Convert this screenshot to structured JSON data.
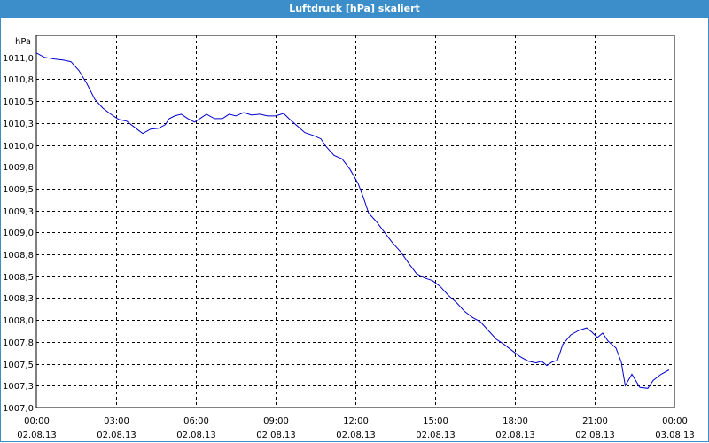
{
  "window": {
    "title": "Luftdruck [hPa] skaliert"
  },
  "colors": {
    "titlebar": "#3b8ec9",
    "series": "#0000cc",
    "grid": "#000000"
  },
  "chart_data": {
    "type": "line",
    "title": "Luftdruck [hPa] skaliert",
    "ylabel": "hPa",
    "xlabel": "",
    "grid": true,
    "grid_style": "dashed",
    "x_unit": "hours since 02.08.13 00:00",
    "xlim": [
      0,
      24
    ],
    "ylim": [
      1007.0,
      1011.25
    ],
    "x_ticks": [
      {
        "x": 0,
        "time": "00:00",
        "date": "02.08.13"
      },
      {
        "x": 3,
        "time": "03:00",
        "date": "02.08.13"
      },
      {
        "x": 6,
        "time": "06:00",
        "date": "02.08.13"
      },
      {
        "x": 9,
        "time": "09:00",
        "date": "02.08.13"
      },
      {
        "x": 12,
        "time": "12:00",
        "date": "02.08.13"
      },
      {
        "x": 15,
        "time": "15:00",
        "date": "02.08.13"
      },
      {
        "x": 18,
        "time": "18:00",
        "date": "02.08.13"
      },
      {
        "x": 21,
        "time": "21:00",
        "date": "02.08.13"
      },
      {
        "x": 24,
        "time": "00:00",
        "date": "03.08.13"
      }
    ],
    "y_ticks": [
      {
        "v": 1007.0,
        "label": "1007,0"
      },
      {
        "v": 1007.25,
        "label": "1007,3"
      },
      {
        "v": 1007.5,
        "label": "1007,5"
      },
      {
        "v": 1007.75,
        "label": "1007,8"
      },
      {
        "v": 1008.0,
        "label": "1008,0"
      },
      {
        "v": 1008.25,
        "label": "1008,3"
      },
      {
        "v": 1008.5,
        "label": "1008,5"
      },
      {
        "v": 1008.75,
        "label": "1008,8"
      },
      {
        "v": 1009.0,
        "label": "1009,0"
      },
      {
        "v": 1009.25,
        "label": "1009,3"
      },
      {
        "v": 1009.5,
        "label": "1009,5"
      },
      {
        "v": 1009.75,
        "label": "1009,8"
      },
      {
        "v": 1010.0,
        "label": "1010,0"
      },
      {
        "v": 1010.25,
        "label": "1010,3"
      },
      {
        "v": 1010.5,
        "label": "1010,5"
      },
      {
        "v": 1010.75,
        "label": "1010,8"
      },
      {
        "v": 1011.0,
        "label": "1011,0"
      }
    ],
    "series": [
      {
        "color": "#0000cc",
        "points": [
          [
            0.0,
            1011.05
          ],
          [
            0.3,
            1011.0
          ],
          [
            0.7,
            1010.98
          ],
          [
            1.0,
            1010.97
          ],
          [
            1.3,
            1010.95
          ],
          [
            1.6,
            1010.85
          ],
          [
            1.9,
            1010.7
          ],
          [
            2.2,
            1010.52
          ],
          [
            2.5,
            1010.42
          ],
          [
            2.8,
            1010.35
          ],
          [
            3.1,
            1010.29
          ],
          [
            3.4,
            1010.27
          ],
          [
            3.7,
            1010.2
          ],
          [
            4.0,
            1010.13
          ],
          [
            4.3,
            1010.18
          ],
          [
            4.6,
            1010.19
          ],
          [
            4.85,
            1010.23
          ],
          [
            5.0,
            1010.3
          ],
          [
            5.2,
            1010.33
          ],
          [
            5.45,
            1010.35
          ],
          [
            5.7,
            1010.3
          ],
          [
            5.95,
            1010.26
          ],
          [
            6.15,
            1010.3
          ],
          [
            6.4,
            1010.35
          ],
          [
            6.7,
            1010.3
          ],
          [
            7.0,
            1010.3
          ],
          [
            7.25,
            1010.35
          ],
          [
            7.5,
            1010.33
          ],
          [
            7.8,
            1010.37
          ],
          [
            8.1,
            1010.34
          ],
          [
            8.4,
            1010.35
          ],
          [
            8.7,
            1010.33
          ],
          [
            9.0,
            1010.33
          ],
          [
            9.3,
            1010.36
          ],
          [
            9.5,
            1010.3
          ],
          [
            9.8,
            1010.22
          ],
          [
            10.1,
            1010.14
          ],
          [
            10.4,
            1010.11
          ],
          [
            10.7,
            1010.07
          ],
          [
            10.9,
            1009.98
          ],
          [
            11.2,
            1009.88
          ],
          [
            11.5,
            1009.84
          ],
          [
            11.8,
            1009.72
          ],
          [
            12.1,
            1009.56
          ],
          [
            12.3,
            1009.4
          ],
          [
            12.5,
            1009.22
          ],
          [
            12.8,
            1009.12
          ],
          [
            13.1,
            1009.0
          ],
          [
            13.4,
            1008.88
          ],
          [
            13.7,
            1008.78
          ],
          [
            14.0,
            1008.65
          ],
          [
            14.3,
            1008.53
          ],
          [
            14.6,
            1008.48
          ],
          [
            14.9,
            1008.45
          ],
          [
            15.2,
            1008.38
          ],
          [
            15.5,
            1008.28
          ],
          [
            15.8,
            1008.2
          ],
          [
            16.1,
            1008.1
          ],
          [
            16.4,
            1008.03
          ],
          [
            16.7,
            1007.98
          ],
          [
            17.0,
            1007.88
          ],
          [
            17.3,
            1007.78
          ],
          [
            17.6,
            1007.72
          ],
          [
            17.9,
            1007.65
          ],
          [
            18.2,
            1007.58
          ],
          [
            18.5,
            1007.53
          ],
          [
            18.8,
            1007.51
          ],
          [
            19.0,
            1007.53
          ],
          [
            19.2,
            1007.48
          ],
          [
            19.4,
            1007.52
          ],
          [
            19.6,
            1007.54
          ],
          [
            19.8,
            1007.72
          ],
          [
            20.1,
            1007.83
          ],
          [
            20.4,
            1007.88
          ],
          [
            20.7,
            1007.91
          ],
          [
            20.9,
            1007.86
          ],
          [
            21.1,
            1007.8
          ],
          [
            21.3,
            1007.85
          ],
          [
            21.5,
            1007.76
          ],
          [
            21.8,
            1007.68
          ],
          [
            22.0,
            1007.52
          ],
          [
            22.15,
            1007.25
          ],
          [
            22.4,
            1007.38
          ],
          [
            22.7,
            1007.23
          ],
          [
            23.0,
            1007.22
          ],
          [
            23.2,
            1007.31
          ],
          [
            23.5,
            1007.38
          ],
          [
            23.8,
            1007.43
          ]
        ]
      }
    ]
  }
}
